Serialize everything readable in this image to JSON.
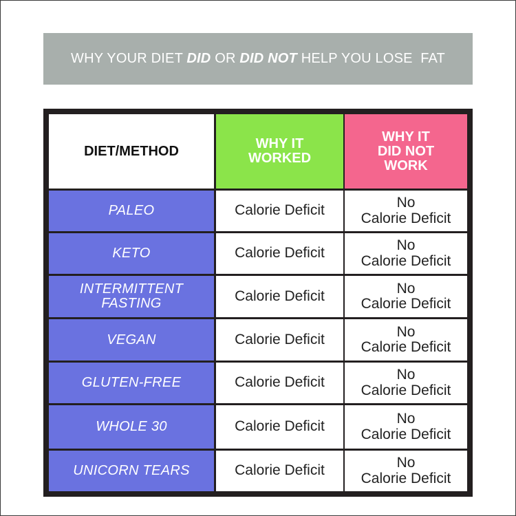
{
  "title": {
    "p1": "WHY YOUR DIET ",
    "em1": "DID",
    "p2": " OR ",
    "em2": "DID NOT",
    "p3": " HELP YOU LOSE  FAT"
  },
  "headers": {
    "diet": "DIET/METHOD",
    "worked": "WHY IT\nWORKED",
    "not_worked": "WHY IT\nDID NOT\nWORK"
  },
  "rows": [
    {
      "diet": "PALEO",
      "worked": "Calorie Deficit",
      "not_worked": "No\nCalorie Deficit"
    },
    {
      "diet": "KETO",
      "worked": "Calorie Deficit",
      "not_worked": "No\nCalorie Deficit"
    },
    {
      "diet": "INTERMITTENT\nFASTING",
      "worked": "Calorie Deficit",
      "not_worked": "No\nCalorie Deficit"
    },
    {
      "diet": "VEGAN",
      "worked": "Calorie Deficit",
      "not_worked": "No\nCalorie Deficit"
    },
    {
      "diet": "GLUTEN-FREE",
      "worked": "Calorie Deficit",
      "not_worked": "No\nCalorie Deficit"
    },
    {
      "diet": "WHOLE 30",
      "worked": "Calorie Deficit",
      "not_worked": "No\nCalorie Deficit"
    },
    {
      "diet": "UNICORN TEARS",
      "worked": "Calorie Deficit",
      "not_worked": "No\nCalorie Deficit"
    }
  ],
  "colors": {
    "title_band": "#a8afac",
    "worked_header": "#8be44a",
    "not_worked_header": "#f4668e",
    "diet_cell": "#6a72e0",
    "grid_border": "#231f20"
  }
}
